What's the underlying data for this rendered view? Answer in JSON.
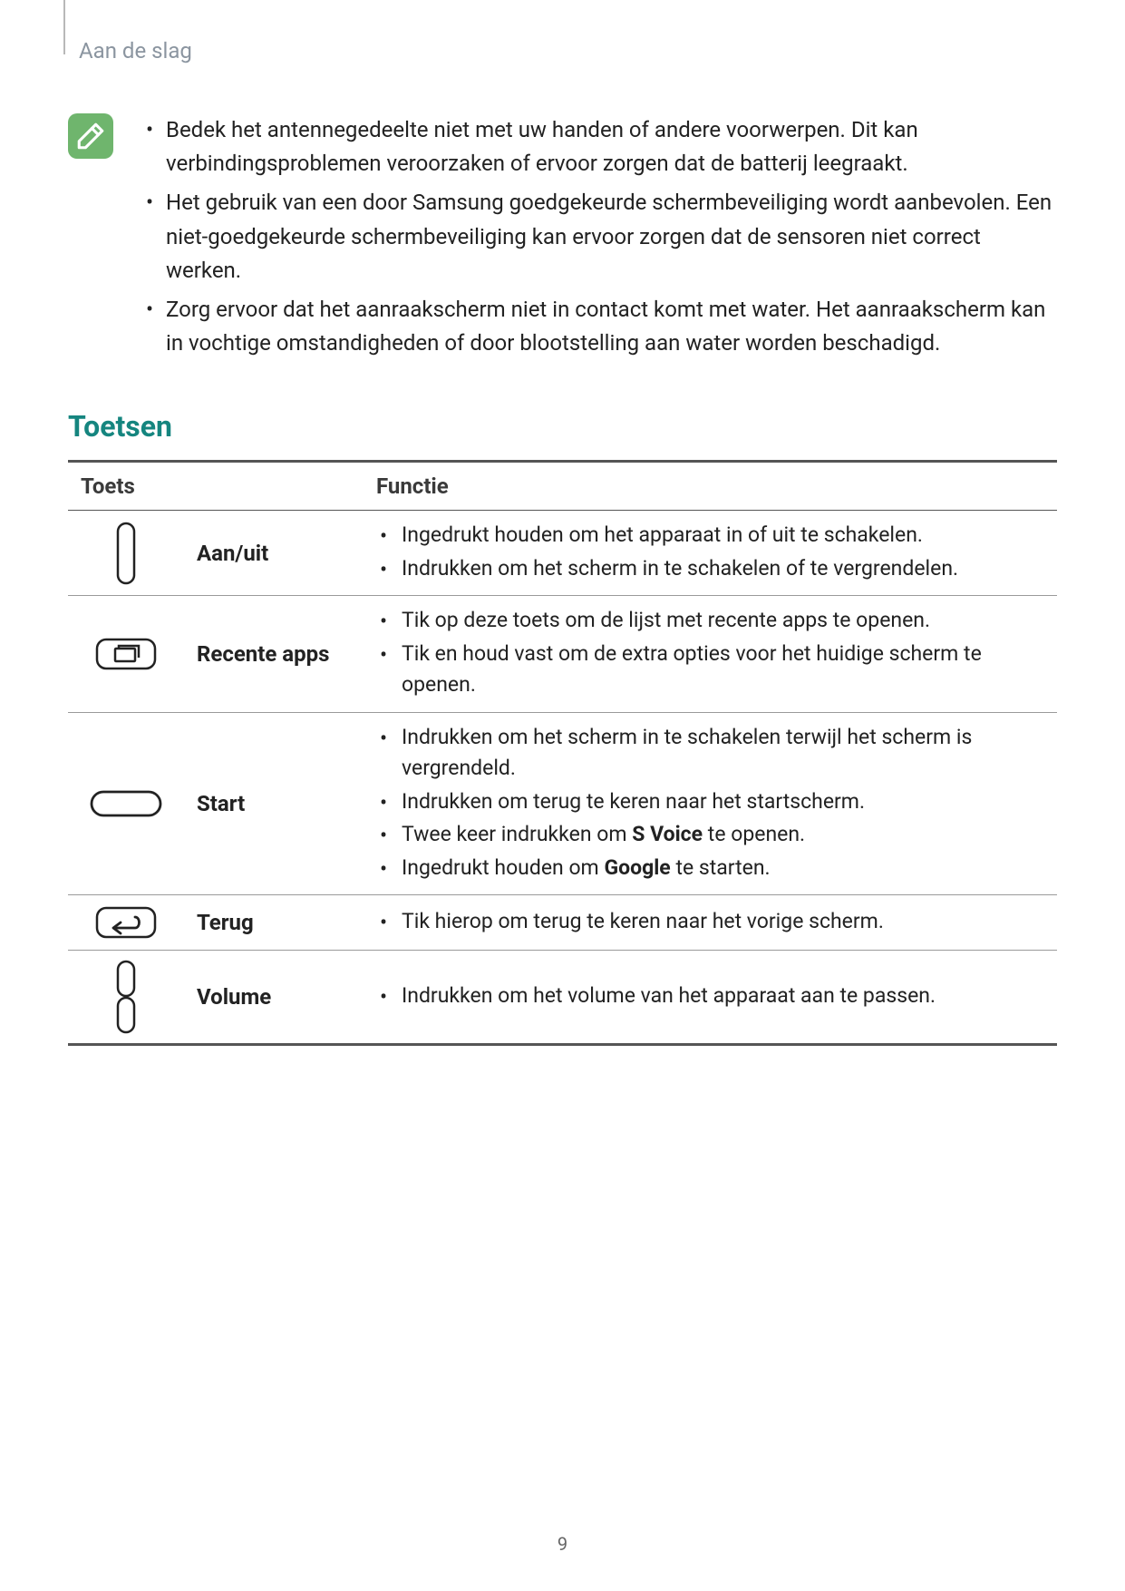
{
  "header": {
    "section_label": "Aan de slag"
  },
  "notes": [
    "Bedek het antennegedeelte niet met uw handen of andere voorwerpen. Dit kan verbindingsproblemen veroorzaken of ervoor zorgen dat de batterij leegraakt.",
    "Het gebruik van een door Samsung goedgekeurde schermbeveiliging wordt aanbevolen. Een niet-goedgekeurde schermbeveiliging kan ervoor zorgen dat de sensoren niet correct werken.",
    "Zorg ervoor dat het aanraakscherm niet in contact komt met water. Het aanraakscherm kan in vochtige omstandigheden of door blootstelling aan water worden beschadigd."
  ],
  "section_title": "Toetsen",
  "table": {
    "col1": "Toets",
    "col2": "Functie",
    "rows": [
      {
        "key": "Aan/uit",
        "funcs": [
          "Ingedrukt houden om het apparaat in of uit te schakelen.",
          "Indrukken om het scherm in te schakelen of te vergrendelen."
        ]
      },
      {
        "key": "Recente apps",
        "funcs": [
          "Tik op deze toets om de lijst met recente apps te openen.",
          "Tik en houd vast om de extra opties voor het huidige scherm te openen."
        ]
      },
      {
        "key": "Start",
        "funcs": [
          "Indrukken om het scherm in te schakelen terwijl het scherm is vergrendeld.",
          "Indrukken om terug te keren naar het startscherm.",
          "Twee keer indrukken om <b>S Voice</b>  te openen.",
          "Ingedrukt houden om <b>Google</b> te starten."
        ]
      },
      {
        "key": "Terug",
        "funcs": [
          "Tik hierop om terug te keren naar het vorige scherm."
        ]
      },
      {
        "key": "Volume",
        "funcs": [
          "Indrukken om het volume van het apparaat aan te passen."
        ]
      }
    ]
  },
  "page_number": "9",
  "colors": {
    "teal": "#15857f",
    "note_icon_bg": "#6fb56d",
    "header_gray": "#8b95a0"
  }
}
